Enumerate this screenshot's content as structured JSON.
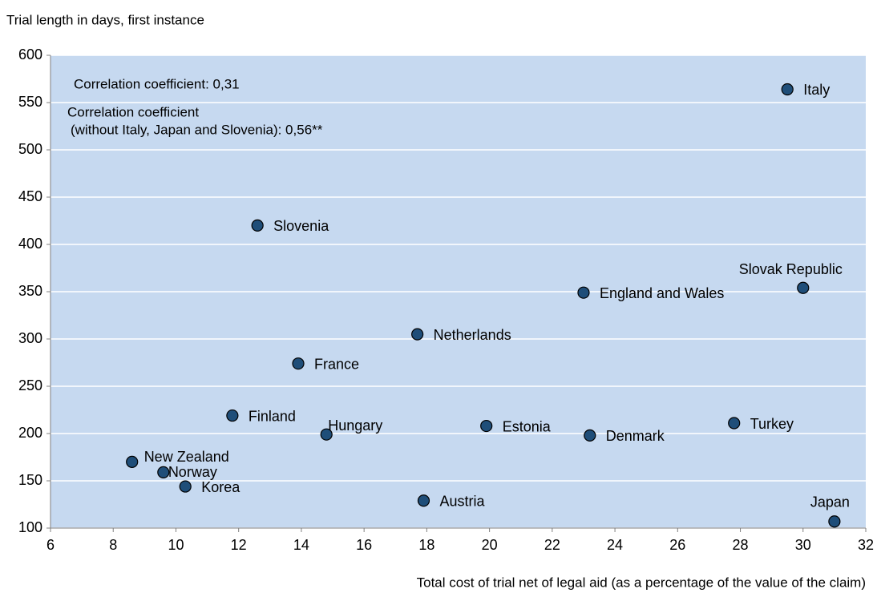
{
  "chart_data": {
    "type": "scatter",
    "y_label": "Trial length in days, first instance",
    "x_label": "Total cost of trial net of legal aid (as a percentage of the value of the claim)",
    "annotations": [
      "Correlation coefficient: 0,31",
      "Correlation coefficient",
      "(without Italy, Japan and Slovenia): 0,56**"
    ],
    "labels": [
      "Italy",
      "Slovenia",
      "Slovak Republic",
      "England and Wales",
      "Netherlands",
      "France",
      "Finland",
      "Hungary",
      "Estonia",
      "Denmark",
      "Turkey",
      "New Zealand",
      "Norway",
      "Korea",
      "Austria",
      "Japan"
    ],
    "x": [
      29.5,
      12.6,
      30.0,
      23.0,
      17.7,
      13.9,
      11.8,
      14.8,
      19.9,
      23.2,
      27.8,
      8.6,
      9.6,
      10.3,
      17.9,
      31.0
    ],
    "y": [
      564,
      420,
      354,
      349,
      305,
      274,
      219,
      199,
      208,
      198,
      211,
      170,
      159,
      144,
      129,
      107
    ],
    "color": "#1f4e79",
    "plot_background": "#c6d9f0",
    "xlim": [
      6,
      32
    ],
    "xticks": [
      6,
      8,
      10,
      12,
      14,
      16,
      18,
      20,
      22,
      24,
      26,
      28,
      30,
      32
    ],
    "ylim": [
      100,
      600
    ],
    "yticks": [
      100,
      150,
      200,
      250,
      300,
      350,
      400,
      450,
      500,
      550,
      600
    ],
    "grid": true
  }
}
